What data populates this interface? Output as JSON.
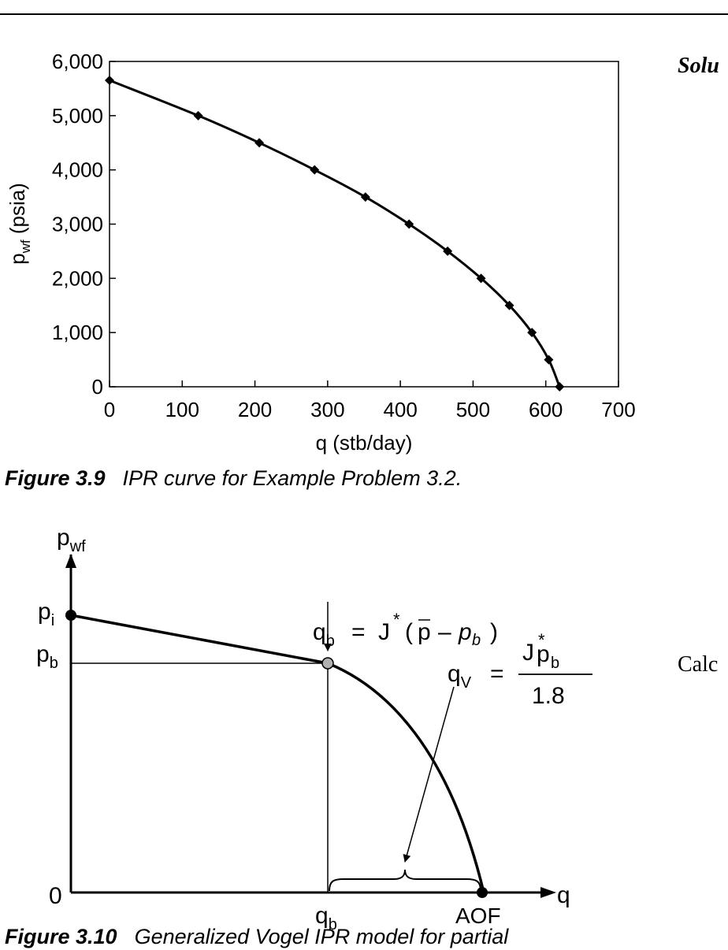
{
  "side_text": {
    "solution": "Solu",
    "calc": "Calc"
  },
  "figure_3_9": {
    "caption_label": "Figure 3.9",
    "caption_text": "IPR curve for Example Problem 3.2."
  },
  "figure_3_10": {
    "caption_label": "Figure 3.10",
    "caption_text": "Generalized Vogel IPR model for partial",
    "labels": {
      "y_axis": "p",
      "y_axis_sub": "wf",
      "x_axis": "q",
      "p_i": "p",
      "p_i_sub": "i",
      "p_b": "p",
      "p_b_sub": "b",
      "zero": "0",
      "q_b": "q",
      "q_b_sub": "b",
      "aof": "AOF"
    },
    "equation_qb": "q_b = J*( p̄ − p_b )",
    "equation_qv": "q_V = J*p_b / 1.8"
  },
  "chart_data": {
    "type": "line",
    "title": "",
    "xlabel": "q (stb/day)",
    "ylabel_main": "p",
    "ylabel_sub": "wf",
    "ylabel_unit": " (psia)",
    "xlim": [
      0,
      700
    ],
    "ylim": [
      0,
      6000
    ],
    "xticks": [
      0,
      100,
      200,
      300,
      400,
      500,
      600,
      700
    ],
    "yticks": [
      0,
      1000,
      2000,
      3000,
      4000,
      5000,
      6000
    ],
    "xtick_labels": [
      "0",
      "100",
      "200",
      "300",
      "400",
      "500",
      "600",
      "700"
    ],
    "ytick_labels": [
      "0",
      "1,000",
      "2,000",
      "3,000",
      "4,000",
      "5,000",
      "6,000"
    ],
    "grid": false,
    "series": [
      {
        "x": [
          0,
          122,
          206,
          282,
          352,
          412,
          465,
          511,
          550,
          581,
          604,
          619
        ],
        "y": [
          5651,
          5000,
          4500,
          4000,
          3500,
          3000,
          2500,
          2000,
          1500,
          1000,
          500,
          0
        ]
      }
    ]
  }
}
